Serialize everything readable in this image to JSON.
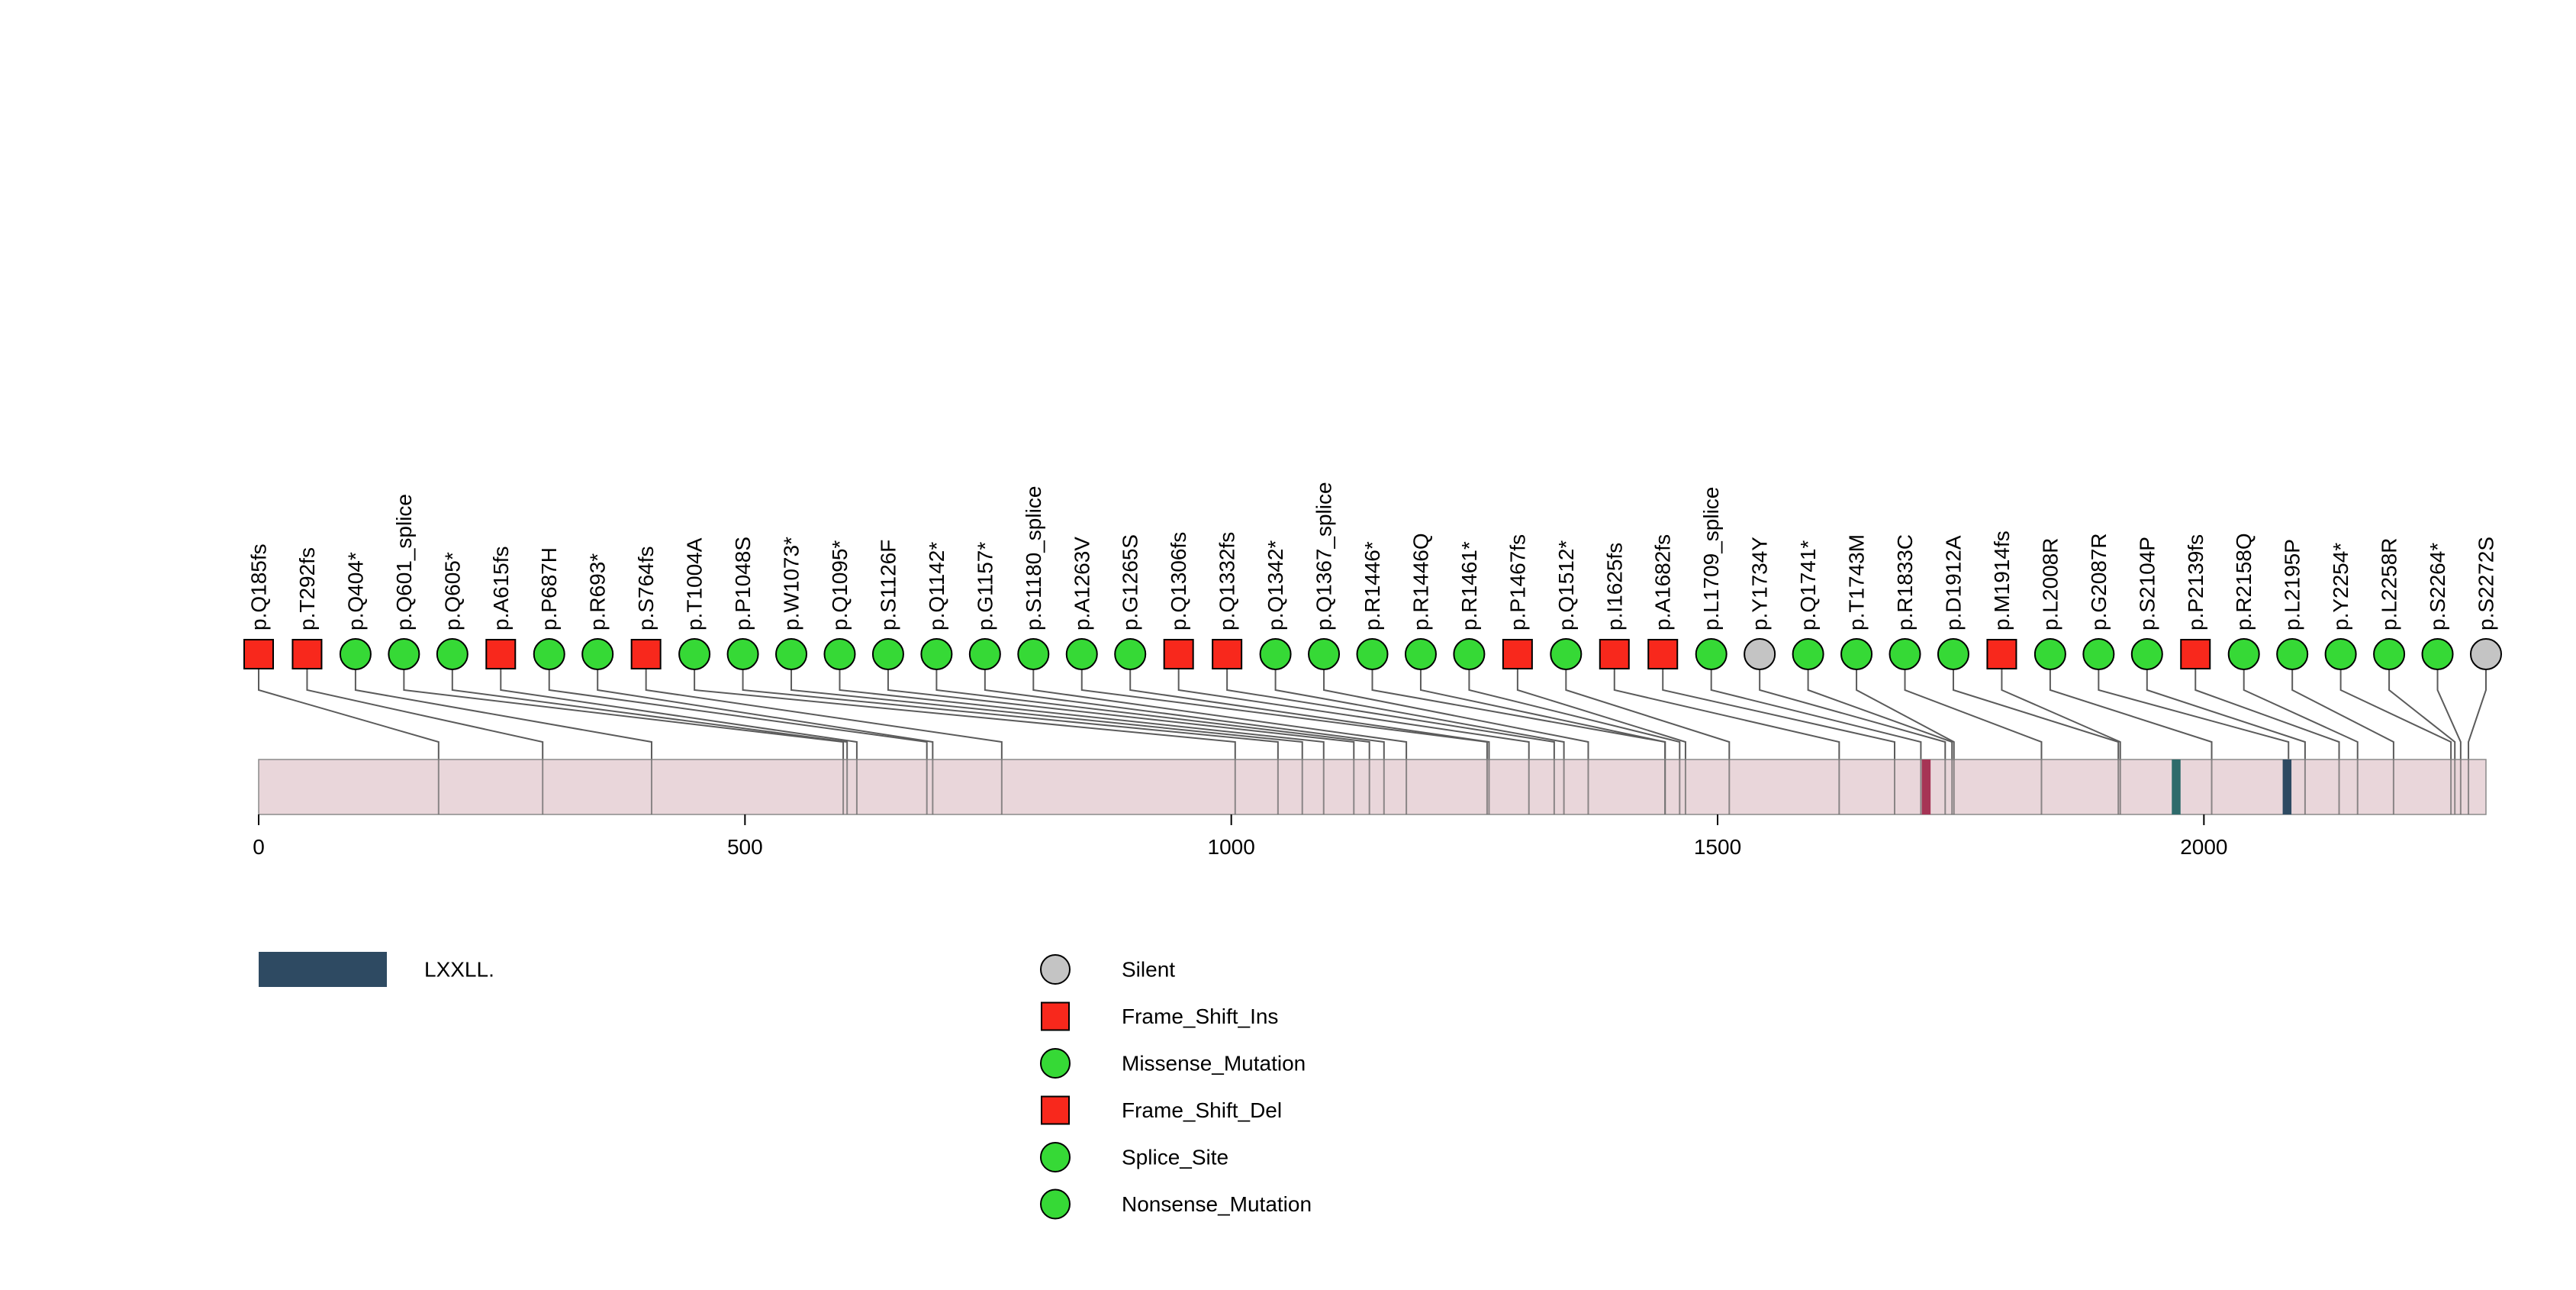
{
  "chart_data": {
    "type": "lollipop",
    "title": "",
    "protein_length": 2290,
    "xticks": [
      0,
      500,
      1000,
      1500,
      2000
    ],
    "mutations": [
      {
        "label": "p.Q185fs",
        "pos": 185,
        "type": "frame_shift"
      },
      {
        "label": "p.T292fs",
        "pos": 292,
        "type": "frame_shift"
      },
      {
        "label": "p.Q404*",
        "pos": 404,
        "type": "nonsense"
      },
      {
        "label": "p.Q601_splice",
        "pos": 601,
        "type": "splice"
      },
      {
        "label": "p.Q605*",
        "pos": 605,
        "type": "nonsense"
      },
      {
        "label": "p.A615fs",
        "pos": 615,
        "type": "frame_shift"
      },
      {
        "label": "p.P687H",
        "pos": 687,
        "type": "missense"
      },
      {
        "label": "p.R693*",
        "pos": 693,
        "type": "nonsense"
      },
      {
        "label": "p.S764fs",
        "pos": 764,
        "type": "frame_shift"
      },
      {
        "label": "p.T1004A",
        "pos": 1004,
        "type": "missense"
      },
      {
        "label": "p.P1048S",
        "pos": 1048,
        "type": "missense"
      },
      {
        "label": "p.W1073*",
        "pos": 1073,
        "type": "nonsense"
      },
      {
        "label": "p.Q1095*",
        "pos": 1095,
        "type": "nonsense"
      },
      {
        "label": "p.S1126F",
        "pos": 1126,
        "type": "missense"
      },
      {
        "label": "p.Q1142*",
        "pos": 1142,
        "type": "nonsense"
      },
      {
        "label": "p.G1157*",
        "pos": 1157,
        "type": "nonsense"
      },
      {
        "label": "p.S1180_splice",
        "pos": 1180,
        "type": "splice"
      },
      {
        "label": "p.A1263V",
        "pos": 1263,
        "type": "missense"
      },
      {
        "label": "p.G1265S",
        "pos": 1265,
        "type": "missense"
      },
      {
        "label": "p.Q1306fs",
        "pos": 1306,
        "type": "frame_shift"
      },
      {
        "label": "p.Q1332fs",
        "pos": 1332,
        "type": "frame_shift"
      },
      {
        "label": "p.Q1342*",
        "pos": 1342,
        "type": "nonsense"
      },
      {
        "label": "p.Q1367_splice",
        "pos": 1367,
        "type": "splice"
      },
      {
        "label": "p.R1446*",
        "pos": 1446,
        "type": "nonsense"
      },
      {
        "label": "p.R1446Q",
        "pos": 1446,
        "type": "missense"
      },
      {
        "label": "p.R1461*",
        "pos": 1461,
        "type": "nonsense"
      },
      {
        "label": "p.P1467fs",
        "pos": 1467,
        "type": "frame_shift"
      },
      {
        "label": "p.Q1512*",
        "pos": 1512,
        "type": "nonsense"
      },
      {
        "label": "p.I1625fs",
        "pos": 1625,
        "type": "frame_shift"
      },
      {
        "label": "p.A1682fs",
        "pos": 1682,
        "type": "frame_shift"
      },
      {
        "label": "p.L1709_splice",
        "pos": 1709,
        "type": "splice"
      },
      {
        "label": "p.Y1734Y",
        "pos": 1734,
        "type": "silent"
      },
      {
        "label": "p.Q1741*",
        "pos": 1741,
        "type": "nonsense"
      },
      {
        "label": "p.T1743M",
        "pos": 1743,
        "type": "missense"
      },
      {
        "label": "p.R1833C",
        "pos": 1833,
        "type": "missense"
      },
      {
        "label": "p.D1912A",
        "pos": 1912,
        "type": "missense"
      },
      {
        "label": "p.M1914fs",
        "pos": 1914,
        "type": "frame_shift"
      },
      {
        "label": "p.L2008R",
        "pos": 2008,
        "type": "missense"
      },
      {
        "label": "p.G2087R",
        "pos": 2087,
        "type": "missense"
      },
      {
        "label": "p.S2104P",
        "pos": 2104,
        "type": "missense"
      },
      {
        "label": "p.P2139fs",
        "pos": 2139,
        "type": "frame_shift"
      },
      {
        "label": "p.R2158Q",
        "pos": 2158,
        "type": "missense"
      },
      {
        "label": "p.L2195P",
        "pos": 2195,
        "type": "missense"
      },
      {
        "label": "p.Y2254*",
        "pos": 2254,
        "type": "nonsense"
      },
      {
        "label": "p.L2258R",
        "pos": 2258,
        "type": "missense"
      },
      {
        "label": "p.S2264*",
        "pos": 2264,
        "type": "nonsense"
      },
      {
        "label": "p.S2272S",
        "pos": 2272,
        "type": "silent"
      }
    ],
    "domain_marks": [
      {
        "start": 1710,
        "end": 1719,
        "color": "#a63455"
      },
      {
        "start": 1967,
        "end": 1976,
        "color": "#2e6b6b"
      },
      {
        "start": 2081,
        "end": 2090,
        "color": "#2e4a62"
      }
    ]
  },
  "colors": {
    "types": {
      "frame_shift": "#f8281c",
      "missense": "#36d936",
      "nonsense": "#36d936",
      "splice": "#36d936",
      "silent": "#c4c4c4"
    },
    "protein_bar": "#e9d6da",
    "protein_bar_border": "#8a8a8a",
    "mutation_tick": "#6b6b6b",
    "connector": "#5b5b5b",
    "marker_outline": "#000000"
  },
  "legend": {
    "domain": {
      "label": "LXXLL.",
      "color": "#2e4a62"
    },
    "mutation_types": [
      {
        "label": "Silent",
        "shape": "circle",
        "color": "#c4c4c4"
      },
      {
        "label": "Frame_Shift_Ins",
        "shape": "square",
        "color": "#f8281c"
      },
      {
        "label": "Missense_Mutation",
        "shape": "circle",
        "color": "#36d936"
      },
      {
        "label": "Frame_Shift_Del",
        "shape": "square",
        "color": "#f8281c"
      },
      {
        "label": "Splice_Site",
        "shape": "circle",
        "color": "#36d936"
      },
      {
        "label": "Nonsense_Mutation",
        "shape": "circle",
        "color": "#36d936"
      }
    ]
  }
}
